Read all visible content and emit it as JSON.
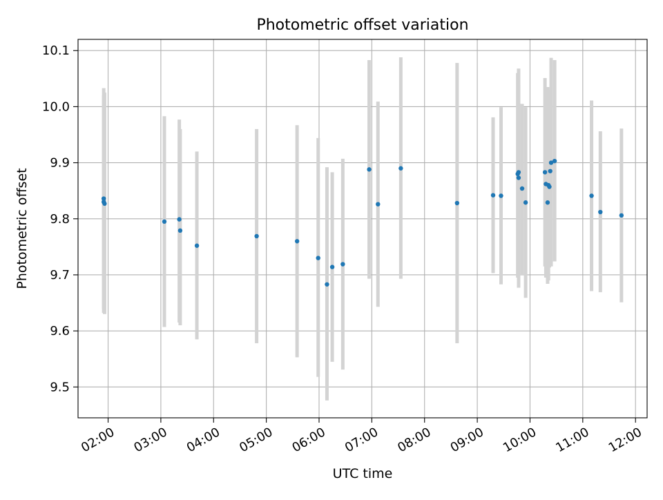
{
  "chart_data": {
    "type": "scatter",
    "title": "Photometric offset variation",
    "xlabel": "UTC time",
    "ylabel": "Photometric offset",
    "x_tick_labels": [
      "02:00",
      "03:00",
      "04:00",
      "05:00",
      "06:00",
      "07:00",
      "08:00",
      "09:00",
      "10:00",
      "11:00",
      "12:00"
    ],
    "y_tick_labels": [
      "9.5",
      "9.6",
      "9.7",
      "9.8",
      "9.9",
      "10.0",
      "10.1"
    ],
    "y_ticks": [
      9.5,
      9.6,
      9.7,
      9.8,
      9.9,
      10.0,
      10.1
    ],
    "x_ticks_hours": [
      2,
      3,
      4,
      5,
      6,
      7,
      8,
      9,
      10,
      11,
      12
    ],
    "xlim_hours": [
      1.43,
      12.22
    ],
    "ylim": [
      9.445,
      10.12
    ],
    "grid": true,
    "marker_color": "#1f77b4",
    "errorbar_color": "#d3d3d3",
    "points": [
      {
        "time": "01:55",
        "y": 9.836,
        "low": 9.632,
        "high": 10.033
      },
      {
        "time": "01:55",
        "y": 9.83,
        "low": 9.64,
        "high": 10.02
      },
      {
        "time": "01:56",
        "y": 9.827,
        "low": 9.63,
        "high": 10.025
      },
      {
        "time": "03:04",
        "y": 9.795,
        "low": 9.607,
        "high": 9.983
      },
      {
        "time": "03:21",
        "y": 9.799,
        "low": 9.615,
        "high": 9.977
      },
      {
        "time": "03:22",
        "y": 9.779,
        "low": 9.61,
        "high": 9.96
      },
      {
        "time": "03:41",
        "y": 9.752,
        "low": 9.585,
        "high": 9.92
      },
      {
        "time": "04:49",
        "y": 9.769,
        "low": 9.578,
        "high": 9.96
      },
      {
        "time": "05:35",
        "y": 9.76,
        "low": 9.553,
        "high": 9.967
      },
      {
        "time": "05:59",
        "y": 9.73,
        "low": 9.518,
        "high": 9.944
      },
      {
        "time": "06:09",
        "y": 9.683,
        "low": 9.476,
        "high": 9.892
      },
      {
        "time": "06:15",
        "y": 9.714,
        "low": 9.545,
        "high": 9.883
      },
      {
        "time": "06:27",
        "y": 9.719,
        "low": 9.531,
        "high": 9.907
      },
      {
        "time": "06:57",
        "y": 9.888,
        "low": 9.693,
        "high": 10.083
      },
      {
        "time": "07:07",
        "y": 9.826,
        "low": 9.643,
        "high": 10.009
      },
      {
        "time": "07:33",
        "y": 9.89,
        "low": 9.693,
        "high": 10.088
      },
      {
        "time": "08:37",
        "y": 9.828,
        "low": 9.578,
        "high": 10.078
      },
      {
        "time": "09:18",
        "y": 9.842,
        "low": 9.703,
        "high": 9.981
      },
      {
        "time": "09:27",
        "y": 9.841,
        "low": 9.683,
        "high": 9.999
      },
      {
        "time": "09:46",
        "y": 9.88,
        "low": 9.695,
        "high": 10.06
      },
      {
        "time": "09:47",
        "y": 9.883,
        "low": 9.705,
        "high": 10.068
      },
      {
        "time": "09:47",
        "y": 9.873,
        "low": 9.677,
        "high": 10.04
      },
      {
        "time": "09:51",
        "y": 9.854,
        "low": 9.7,
        "high": 10.005
      },
      {
        "time": "09:55",
        "y": 9.829,
        "low": 9.659,
        "high": 9.999
      },
      {
        "time": "10:17",
        "y": 9.883,
        "low": 9.715,
        "high": 10.051
      },
      {
        "time": "10:18",
        "y": 9.862,
        "low": 9.695,
        "high": 10.022
      },
      {
        "time": "10:20",
        "y": 9.829,
        "low": 9.684,
        "high": 10.035
      },
      {
        "time": "10:21",
        "y": 9.86,
        "low": 9.69,
        "high": 9.98
      },
      {
        "time": "10:22",
        "y": 9.857,
        "low": 9.713,
        "high": 9.975
      },
      {
        "time": "10:23",
        "y": 9.885,
        "low": 9.74,
        "high": 10.03
      },
      {
        "time": "10:24",
        "y": 9.9,
        "low": 9.715,
        "high": 10.087
      },
      {
        "time": "10:28",
        "y": 9.903,
        "low": 9.724,
        "high": 10.083
      },
      {
        "time": "11:10",
        "y": 9.841,
        "low": 9.671,
        "high": 10.011
      },
      {
        "time": "11:20",
        "y": 9.812,
        "low": 9.669,
        "high": 9.956
      },
      {
        "time": "11:44",
        "y": 9.806,
        "low": 9.651,
        "high": 9.961
      }
    ]
  }
}
